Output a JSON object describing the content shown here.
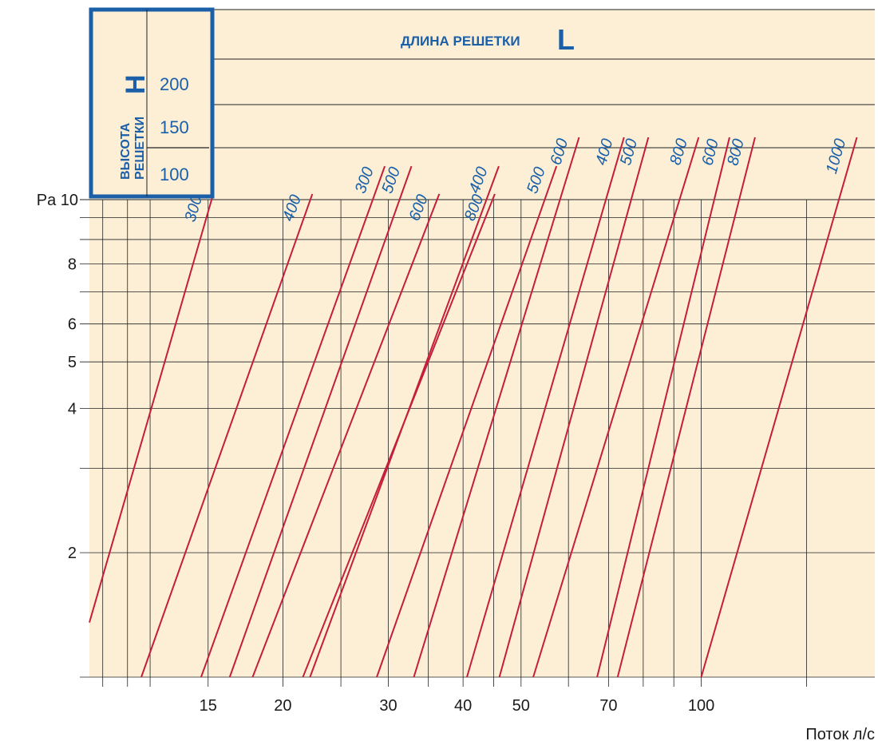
{
  "header": {
    "length_title": "ДЛИНА РЕШЕТКИ",
    "length_symbol": "L",
    "height_title_line1": "ВЫСОТА",
    "height_title_line2": "РЕШЕТКИ",
    "height_symbol": "H",
    "height_rows": [
      "200",
      "150",
      "100"
    ]
  },
  "colors": {
    "background": "#fcefd6",
    "line": "#c41e3a",
    "accent": "#1a5fa8",
    "grid": "#222222"
  },
  "chart_data": {
    "type": "line",
    "xlabel": "Поток л/с",
    "ylabel": "Pa",
    "x_scale": "log",
    "y_scale": "log",
    "xlim": [
      9.5,
      195
    ],
    "ylim": [
      1.1,
      10.9
    ],
    "x_ticks": [
      15,
      20,
      30,
      40,
      50,
      70,
      100
    ],
    "y_ticks": [
      2,
      4,
      5,
      6,
      8,
      10
    ],
    "y_top_label": "Pa 10",
    "grid": true,
    "series": [
      {
        "height": "100",
        "name": "300",
        "x": [
          9.5,
          15.3
        ],
        "y": [
          1.43,
          11.2
        ]
      },
      {
        "height": "100",
        "name": "400",
        "x": [
          11.6,
          22.4
        ],
        "y": [
          1.1,
          11.2
        ]
      },
      {
        "height": "100",
        "name": "500",
        "x": [
          16.3,
          32.8
        ],
        "y": [
          1.1,
          12.8
        ]
      },
      {
        "height": "100",
        "name": "600",
        "x": [
          17.8,
          36.5
        ],
        "y": [
          1.1,
          11.2
        ]
      },
      {
        "height": "100",
        "name": "800",
        "x": [
          21.6,
          45.2
        ],
        "y": [
          1.1,
          11.2
        ]
      },
      {
        "height": "150",
        "name": "300",
        "x": [
          14.6,
          29.6
        ],
        "y": [
          1.1,
          12.8
        ]
      },
      {
        "height": "150",
        "name": "400",
        "x": [
          22.2,
          45.9
        ],
        "y": [
          1.1,
          12.8
        ]
      },
      {
        "height": "150",
        "name": "500",
        "x": [
          28.7,
          57.3
        ],
        "y": [
          1.1,
          12.8
        ]
      },
      {
        "height": "150",
        "name": "600",
        "x": [
          33.1,
          62.5
        ],
        "y": [
          1.1,
          14.7
        ]
      },
      {
        "height": "150",
        "name": "800",
        "x": [
          52.4,
          99.0
        ],
        "y": [
          1.1,
          14.7
        ]
      },
      {
        "height": "200",
        "name": "400",
        "x": [
          40.6,
          74.3
        ],
        "y": [
          1.1,
          14.7
        ]
      },
      {
        "height": "200",
        "name": "500",
        "x": [
          46.0,
          81.6
        ],
        "y": [
          1.1,
          14.7
        ]
      },
      {
        "height": "200",
        "name": "600",
        "x": [
          67.0,
          111.5
        ],
        "y": [
          1.1,
          14.7
        ]
      },
      {
        "height": "200",
        "name": "800",
        "x": [
          72.5,
          123.0
        ],
        "y": [
          1.1,
          14.7
        ]
      },
      {
        "height": "200",
        "name": "1000",
        "x": [
          100.0,
          182.0
        ],
        "y": [
          1.1,
          14.7
        ]
      }
    ]
  }
}
